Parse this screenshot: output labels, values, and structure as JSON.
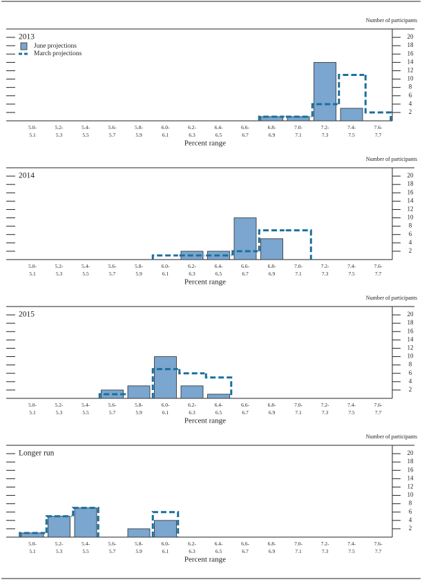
{
  "chart_data": [
    {
      "type": "bar",
      "title": "2013",
      "y_label": "Number of participants",
      "x_label": "Percent range",
      "categories": [
        [
          "5.0-",
          "5.1"
        ],
        [
          "5.2-",
          "5.3"
        ],
        [
          "5.4-",
          "5.5"
        ],
        [
          "5.6-",
          "5.7"
        ],
        [
          "5.8-",
          "5.9"
        ],
        [
          "6.0-",
          "6.1"
        ],
        [
          "6.2-",
          "6.3"
        ],
        [
          "6.4-",
          "6.5"
        ],
        [
          "6.6-",
          "6.7"
        ],
        [
          "6.8-",
          "6.9"
        ],
        [
          "7.0-",
          "7.1"
        ],
        [
          "7.2-",
          "7.3"
        ],
        [
          "7.4-",
          "7.5"
        ],
        [
          "7.6-",
          "7.7"
        ]
      ],
      "series": [
        {
          "name": "June projections",
          "color": "#7aa6cf",
          "style": "solid",
          "values": [
            0,
            0,
            0,
            0,
            0,
            0,
            0,
            0,
            0,
            1,
            1,
            14,
            3,
            0
          ]
        },
        {
          "name": "March projections",
          "color": "#1b6f9c",
          "style": "dashed",
          "values": [
            0,
            0,
            0,
            0,
            0,
            0,
            0,
            0,
            0,
            1,
            1,
            4,
            11,
            2
          ]
        }
      ],
      "legend": "upper left",
      "ylim": [
        0,
        22
      ],
      "yticks": [
        2,
        4,
        6,
        8,
        10,
        12,
        14,
        16,
        18,
        20
      ]
    },
    {
      "type": "bar",
      "title": "2014",
      "y_label": "Number of participants",
      "x_label": "Percent range",
      "categories": [
        [
          "5.0-",
          "5.1"
        ],
        [
          "5.2-",
          "5.3"
        ],
        [
          "5.4-",
          "5.5"
        ],
        [
          "5.6-",
          "5.7"
        ],
        [
          "5.8-",
          "5.9"
        ],
        [
          "6.0-",
          "6.1"
        ],
        [
          "6.2-",
          "6.3"
        ],
        [
          "6.4-",
          "6.5"
        ],
        [
          "6.6-",
          "6.7"
        ],
        [
          "6.8-",
          "6.9"
        ],
        [
          "7.0-",
          "7.1"
        ],
        [
          "7.2-",
          "7.3"
        ],
        [
          "7.4-",
          "7.5"
        ],
        [
          "7.6-",
          "7.7"
        ]
      ],
      "series": [
        {
          "color": "#7aa6cf",
          "style": "solid",
          "values": [
            0,
            0,
            0,
            0,
            0,
            0,
            2,
            2,
            10,
            5,
            0,
            0,
            0,
            0
          ]
        },
        {
          "color": "#1b6f9c",
          "style": "dashed",
          "values": [
            0,
            0,
            0,
            0,
            0,
            1,
            1,
            1,
            2,
            7,
            7,
            0,
            0,
            0
          ]
        }
      ],
      "ylim": [
        0,
        22
      ],
      "yticks": [
        2,
        4,
        6,
        8,
        10,
        12,
        14,
        16,
        18,
        20
      ]
    },
    {
      "type": "bar",
      "title": "2015",
      "y_label": "Number of participants",
      "x_label": "Percent range",
      "categories": [
        [
          "5.0-",
          "5.1"
        ],
        [
          "5.2-",
          "5.3"
        ],
        [
          "5.4-",
          "5.5"
        ],
        [
          "5.6-",
          "5.7"
        ],
        [
          "5.8-",
          "5.9"
        ],
        [
          "6.0-",
          "6.1"
        ],
        [
          "6.2-",
          "6.3"
        ],
        [
          "6.4-",
          "6.5"
        ],
        [
          "6.6-",
          "6.7"
        ],
        [
          "6.8-",
          "6.9"
        ],
        [
          "7.0-",
          "7.1"
        ],
        [
          "7.2-",
          "7.3"
        ],
        [
          "7.4-",
          "7.5"
        ],
        [
          "7.6-",
          "7.7"
        ]
      ],
      "series": [
        {
          "color": "#7aa6cf",
          "style": "solid",
          "values": [
            0,
            0,
            0,
            2,
            3,
            10,
            3,
            1,
            0,
            0,
            0,
            0,
            0,
            0
          ]
        },
        {
          "color": "#1b6f9c",
          "style": "dashed",
          "values": [
            0,
            0,
            0,
            1,
            0,
            7,
            6,
            5,
            0,
            0,
            0,
            0,
            0,
            0
          ]
        }
      ],
      "ylim": [
        0,
        22
      ],
      "yticks": [
        2,
        4,
        6,
        8,
        10,
        12,
        14,
        16,
        18,
        20
      ]
    },
    {
      "type": "bar",
      "title": "Longer run",
      "y_label": "Number of participants",
      "x_label": "Percent range",
      "categories": [
        [
          "5.0-",
          "5.1"
        ],
        [
          "5.2-",
          "5.3"
        ],
        [
          "5.4-",
          "5.5"
        ],
        [
          "5.6-",
          "5.7"
        ],
        [
          "5.8-",
          "5.9"
        ],
        [
          "6.0-",
          "6.1"
        ],
        [
          "6.2-",
          "6.3"
        ],
        [
          "6.4-",
          "6.5"
        ],
        [
          "6.6-",
          "6.7"
        ],
        [
          "6.8-",
          "6.9"
        ],
        [
          "7.0-",
          "7.1"
        ],
        [
          "7.2-",
          "7.3"
        ],
        [
          "7.4-",
          "7.5"
        ],
        [
          "7.6-",
          "7.7"
        ]
      ],
      "series": [
        {
          "color": "#7aa6cf",
          "style": "solid",
          "values": [
            1,
            5,
            7,
            0,
            2,
            4,
            0,
            0,
            0,
            0,
            0,
            0,
            0,
            0
          ]
        },
        {
          "color": "#1b6f9c",
          "style": "dashed",
          "values": [
            1,
            5,
            7,
            0,
            0,
            6,
            0,
            0,
            0,
            0,
            0,
            0,
            0,
            0
          ]
        }
      ],
      "ylim": [
        0,
        22
      ],
      "yticks": [
        2,
        4,
        6,
        8,
        10,
        12,
        14,
        16,
        18,
        20
      ]
    }
  ]
}
